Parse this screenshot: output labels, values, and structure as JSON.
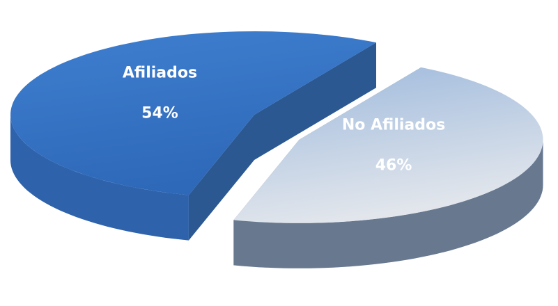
{
  "chart_data": {
    "type": "pie3d",
    "categories": [
      "Afiliados",
      "No Afiliados"
    ],
    "values": [
      54,
      46
    ],
    "value_labels": [
      "54%",
      "46%"
    ],
    "colors": [
      "#3f7fd0",
      "#9db9dc"
    ]
  }
}
